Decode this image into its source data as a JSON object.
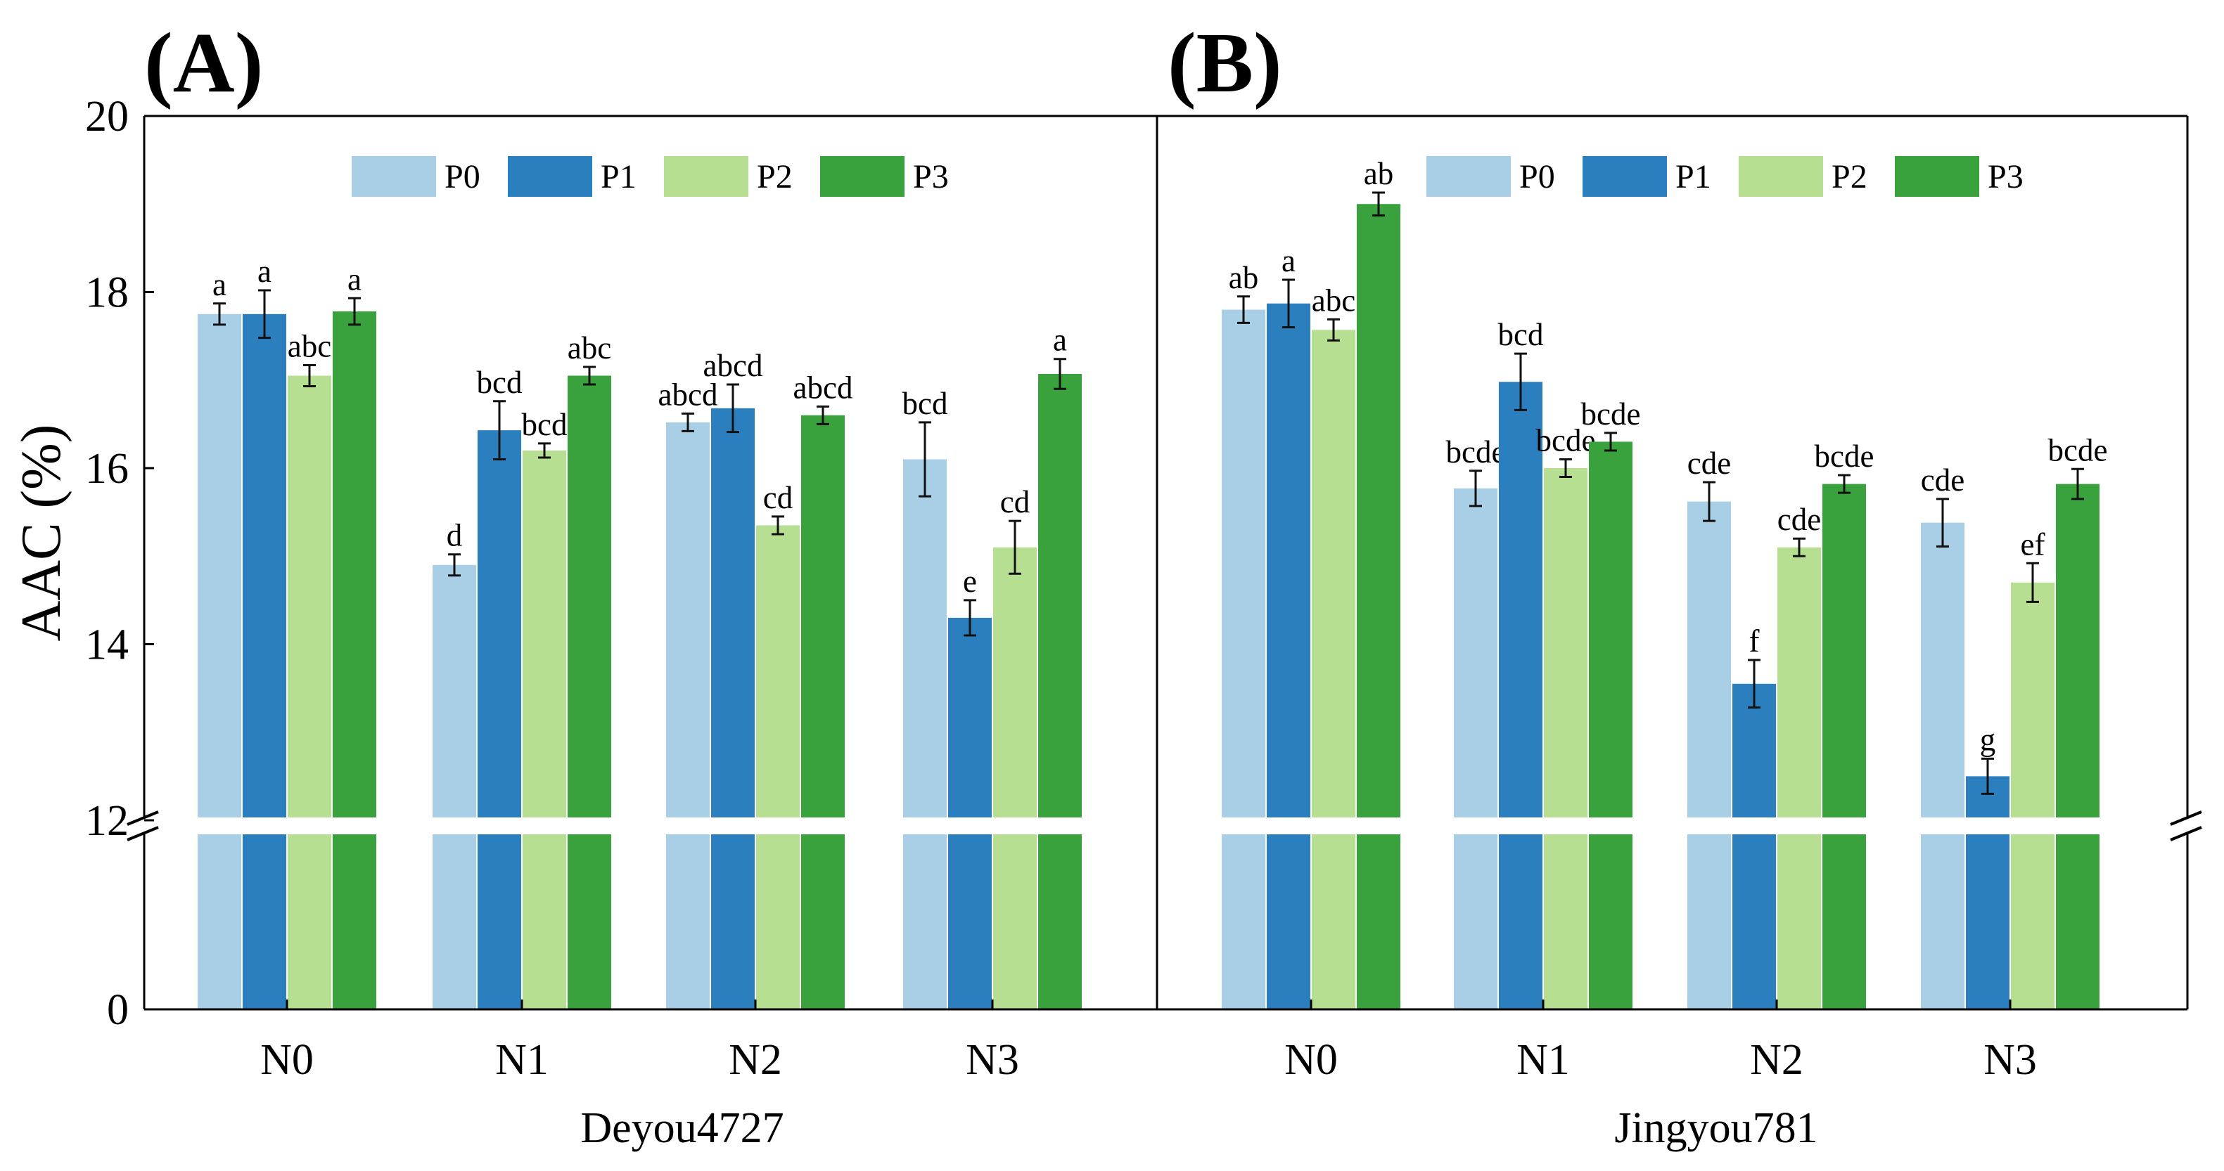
{
  "chart_data": {
    "type": "bar",
    "ylabel": "AAC (%)",
    "yticks": [
      0,
      12,
      14,
      16,
      18,
      20
    ],
    "ylim": [
      0,
      20
    ],
    "axis_break": [
      12,
      12
    ],
    "categories": [
      "N0",
      "N1",
      "N2",
      "N3"
    ],
    "legend": [
      "P0",
      "P1",
      "P2",
      "P3"
    ],
    "colors": [
      "#a8cfe6",
      "#2c7fbf",
      "#b7df92",
      "#39a23c"
    ],
    "panels": [
      {
        "label": "(A)",
        "xlabel": "Deyou4727",
        "series": [
          {
            "name": "P0",
            "values": [
              17.75,
              14.9,
              16.52,
              16.1
            ],
            "errors": [
              0.12,
              0.12,
              0.1,
              0.42
            ],
            "letters": [
              "a",
              "d",
              "abcd",
              "bcd"
            ]
          },
          {
            "name": "P1",
            "values": [
              17.75,
              16.43,
              16.68,
              14.3
            ],
            "errors": [
              0.27,
              0.33,
              0.27,
              0.2
            ],
            "letters": [
              "a",
              "bcd",
              "abcd",
              "e"
            ]
          },
          {
            "name": "P2",
            "values": [
              17.05,
              16.2,
              15.35,
              15.1
            ],
            "errors": [
              0.12,
              0.08,
              0.1,
              0.3
            ],
            "letters": [
              "abc",
              "bcd",
              "cd",
              "cd"
            ]
          },
          {
            "name": "P3",
            "values": [
              17.78,
              17.05,
              16.6,
              17.07
            ],
            "errors": [
              0.15,
              0.1,
              0.1,
              0.17
            ],
            "letters": [
              "a",
              "abc",
              "abcd",
              "a"
            ]
          }
        ]
      },
      {
        "label": "(B)",
        "xlabel": "Jingyou781",
        "series": [
          {
            "name": "P0",
            "values": [
              17.8,
              15.77,
              15.62,
              15.38
            ],
            "errors": [
              0.15,
              0.2,
              0.22,
              0.27
            ],
            "letters": [
              "ab",
              "bcde",
              "cde",
              "cde"
            ]
          },
          {
            "name": "P1",
            "values": [
              17.87,
              16.98,
              13.55,
              12.5
            ],
            "errors": [
              0.27,
              0.32,
              0.27,
              0.2
            ],
            "letters": [
              "a",
              "bcd",
              "f",
              "g"
            ]
          },
          {
            "name": "P2",
            "values": [
              17.57,
              16.0,
              15.1,
              14.7
            ],
            "errors": [
              0.12,
              0.1,
              0.1,
              0.22
            ],
            "letters": [
              "abc",
              "bcde",
              "cde",
              "ef"
            ]
          },
          {
            "name": "P3",
            "values": [
              19.0,
              16.3,
              15.82,
              15.82
            ],
            "errors": [
              0.13,
              0.1,
              0.1,
              0.17
            ],
            "letters": [
              "ab",
              "bcde",
              "bcde",
              "bcde"
            ]
          }
        ]
      }
    ]
  }
}
